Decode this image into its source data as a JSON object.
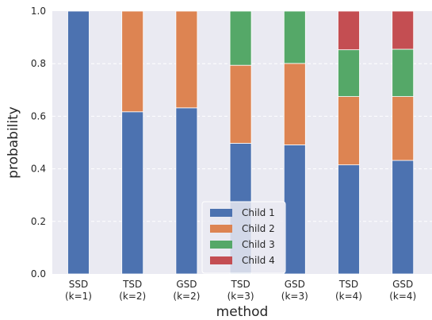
{
  "chart_data": {
    "type": "bar",
    "stacked": true,
    "title": "",
    "xlabel": "method",
    "ylabel": "probability",
    "ylim": [
      0,
      1
    ],
    "yticks": [
      "0.0",
      "0.2",
      "0.4",
      "0.6",
      "0.8",
      "1.0"
    ],
    "grid": true,
    "legend_position": "bottom-center",
    "categories": [
      [
        "SSD",
        "(k=1)"
      ],
      [
        "TSD",
        "(k=2)"
      ],
      [
        "GSD",
        "(k=2)"
      ],
      [
        "TSD",
        "(k=3)"
      ],
      [
        "GSD",
        "(k=3)"
      ],
      [
        "TSD",
        "(k=4)"
      ],
      [
        "GSD",
        "(k=4)"
      ]
    ],
    "series": [
      {
        "name": "Child 1",
        "color": "#4c72b0",
        "values": [
          1.0,
          0.617,
          0.632,
          0.497,
          0.491,
          0.415,
          0.432
        ]
      },
      {
        "name": "Child 2",
        "color": "#dd8452",
        "values": [
          0.0,
          0.383,
          0.368,
          0.297,
          0.31,
          0.26,
          0.243
        ]
      },
      {
        "name": "Child 3",
        "color": "#55a868",
        "values": [
          0.0,
          0.0,
          0.0,
          0.206,
          0.199,
          0.178,
          0.18
        ]
      },
      {
        "name": "Child 4",
        "color": "#c44e52",
        "values": [
          0.0,
          0.0,
          0.0,
          0.0,
          0.0,
          0.147,
          0.145
        ]
      }
    ]
  }
}
